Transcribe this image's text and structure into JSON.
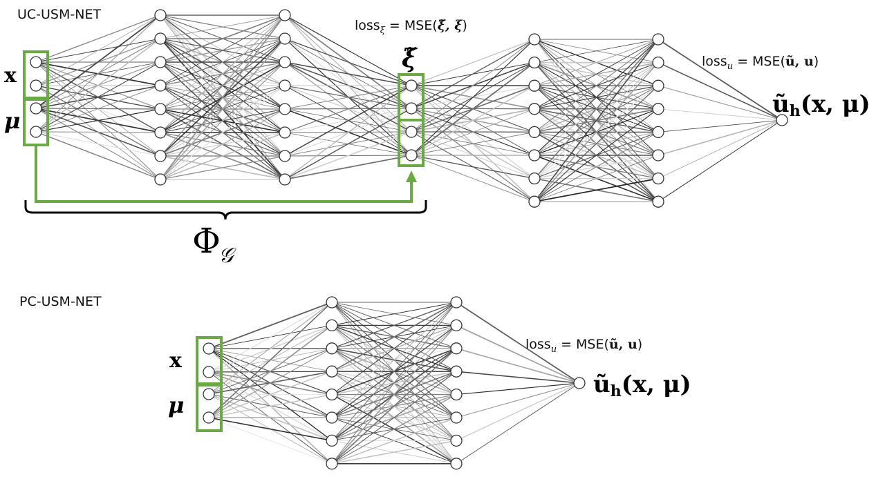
{
  "colors": {
    "highlight": "#6aaa43",
    "node_stroke": "#333333",
    "edge": "#555555"
  },
  "uc_net": {
    "title": "UC-USM-NET",
    "input_x": "x",
    "input_mu": "μ",
    "latent": "ξ̃",
    "loss_xi_prefix": "loss",
    "loss_xi_sub": "ξ",
    "loss_xi_eq": "= MSE(",
    "loss_xi_args": "ξ̃, ξ",
    "loss_xi_close": ")",
    "loss_u_prefix": "loss",
    "loss_u_sub": "u",
    "loss_u_eq": "= MSE(",
    "loss_u_args": "ũ, u",
    "loss_u_close": ")",
    "output_u": "ũ",
    "output_h": "h",
    "output_args": "(x, μ)",
    "phi": "Φ",
    "phi_sub": "𝒢"
  },
  "pc_net": {
    "title": "PC-USM-NET",
    "input_x": "x",
    "input_mu": "μ",
    "loss_u_prefix": "loss",
    "loss_u_sub": "u",
    "loss_u_eq": "= MSE(",
    "loss_u_args": "ũ, u",
    "loss_u_close": ")",
    "output_u": "ũ",
    "output_h": "h",
    "output_args": "(x, μ)"
  }
}
